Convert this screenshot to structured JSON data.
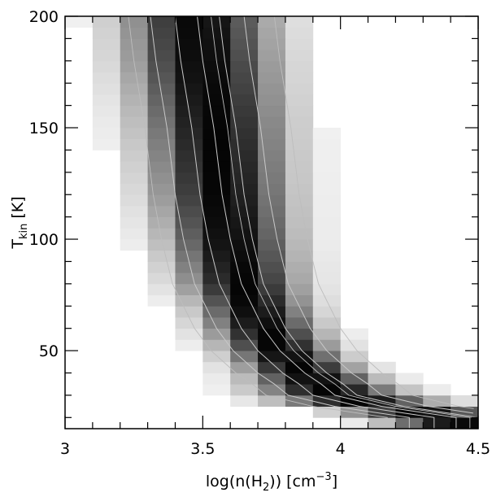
{
  "chart_data": {
    "type": "heatmap",
    "title": "",
    "xlabel": {
      "main": "log(n(H",
      "sub": "2",
      "close": ")) [cm",
      "sup": "−3",
      "end": "]"
    },
    "ylabel": {
      "main": "T",
      "sub": "kin",
      "end": " [K]"
    },
    "xlim": [
      3.0,
      4.5
    ],
    "ylim": [
      15,
      200
    ],
    "x_ticks": [
      3,
      3.5,
      4,
      4.5
    ],
    "x_tick_labels": [
      "3",
      "3.5",
      "4",
      "4.5"
    ],
    "y_ticks": [
      50,
      100,
      150,
      200
    ],
    "y_tick_labels": [
      "50",
      "100",
      "150",
      "200"
    ],
    "x_minor_step": 0.1,
    "y_minor_step": 10,
    "colormap": "grayscale, white = low, black = high",
    "cell_width": 0.1,
    "cell_height": 5,
    "ridge": {
      "description": "peak density along a power-law curve",
      "T_values": [
        20,
        25,
        30,
        35,
        40,
        50,
        60,
        70,
        80,
        100,
        120,
        150,
        180,
        200
      ],
      "logn_peak": [
        4.42,
        4.15,
        3.98,
        3.93,
        3.87,
        3.78,
        3.72,
        3.68,
        3.64,
        3.6,
        3.57,
        3.54,
        3.5,
        3.48
      ],
      "band_halfwidth_logn": [
        0.18,
        0.22,
        0.2,
        0.18,
        0.16,
        0.15,
        0.15,
        0.15,
        0.16,
        0.17,
        0.18,
        0.19,
        0.2,
        0.2
      ]
    },
    "contours": {
      "count": 5,
      "offsets_logn": [
        -0.17,
        -0.08,
        0.0,
        0.08,
        0.17
      ],
      "color": "#c8c8c8"
    },
    "reference_curves": {
      "count": 3,
      "color": "#bdbdbd",
      "offsets_logn": [
        -0.25,
        0.05,
        0.28
      ]
    }
  }
}
